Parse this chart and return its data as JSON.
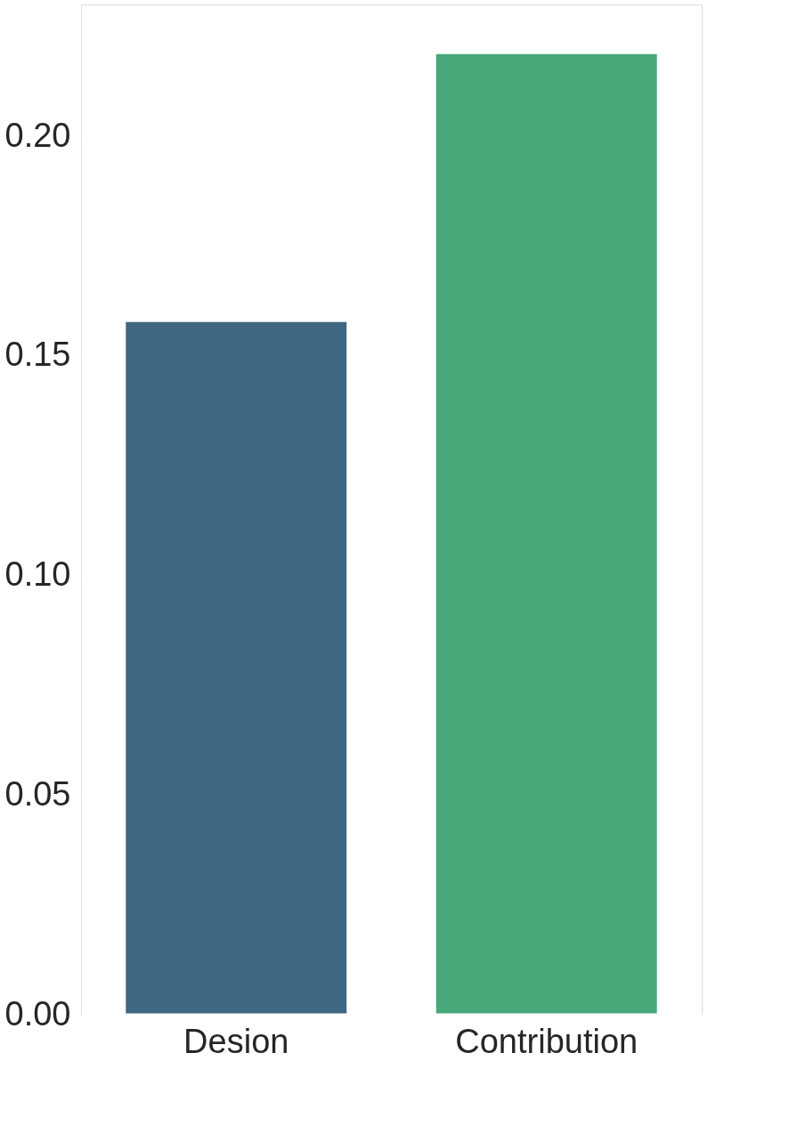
{
  "chart_data": {
    "type": "bar",
    "categories": [
      "Desion",
      "Contribution"
    ],
    "values": [
      0.158,
      0.219
    ],
    "colors": [
      "#3f6782",
      "#48a87a"
    ],
    "ylim": [
      0,
      0.23
    ],
    "yticks": [
      {
        "value": 0,
        "label": "0.00"
      },
      {
        "value": 0.05,
        "label": "0.05"
      },
      {
        "value": 0.1,
        "label": "0.10"
      },
      {
        "value": 0.15,
        "label": "0.15"
      },
      {
        "value": 0.2,
        "label": "0.20"
      }
    ],
    "grid": "y"
  }
}
